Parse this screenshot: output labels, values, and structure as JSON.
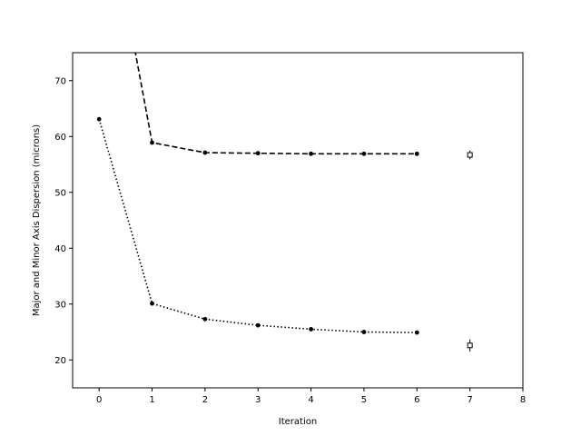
{
  "chart_data": {
    "type": "line",
    "title": "",
    "xlabel": "Iteration",
    "ylabel": "Major and Minor Axis Dispersion (microns)",
    "xlim": [
      -0.5,
      8
    ],
    "ylim": [
      15,
      75
    ],
    "xticks": [
      0,
      1,
      2,
      3,
      4,
      5,
      6,
      7,
      8
    ],
    "yticks": [
      20,
      30,
      40,
      50,
      60,
      70
    ],
    "grid": false,
    "legend": "none",
    "series": [
      {
        "line_style": "dashed",
        "color": "#000000",
        "x": [
          0,
          1,
          2,
          3,
          4,
          5,
          6
        ],
        "y": [
          110,
          58.9,
          57.1,
          57.0,
          56.9,
          56.9,
          56.9
        ]
      },
      {
        "line_style": "dotted",
        "color": "#000000",
        "x": [
          0,
          1,
          2,
          3,
          4,
          5,
          6
        ],
        "y": [
          63.1,
          30.1,
          27.3,
          26.2,
          25.5,
          25.0,
          24.9
        ]
      }
    ],
    "errorbars": [
      {
        "x": 7,
        "y": 56.7,
        "yerr": 0.8
      },
      {
        "x": 7,
        "y": 22.6,
        "yerr": 1.1
      }
    ]
  }
}
